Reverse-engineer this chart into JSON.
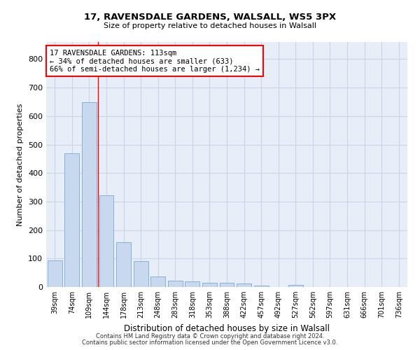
{
  "title1": "17, RAVENSDALE GARDENS, WALSALL, WS5 3PX",
  "title2": "Size of property relative to detached houses in Walsall",
  "xlabel": "Distribution of detached houses by size in Walsall",
  "ylabel": "Number of detached properties",
  "bar_labels": [
    "39sqm",
    "74sqm",
    "109sqm",
    "144sqm",
    "178sqm",
    "213sqm",
    "248sqm",
    "283sqm",
    "318sqm",
    "353sqm",
    "388sqm",
    "422sqm",
    "457sqm",
    "492sqm",
    "527sqm",
    "562sqm",
    "597sqm",
    "631sqm",
    "666sqm",
    "701sqm",
    "736sqm"
  ],
  "bar_values": [
    93,
    470,
    648,
    322,
    157,
    92,
    38,
    23,
    20,
    14,
    14,
    12,
    6,
    0,
    7,
    0,
    0,
    0,
    0,
    0,
    0
  ],
  "bar_color": "#c8d9ef",
  "bar_edge_color": "#7aa8d4",
  "grid_color": "#c8d4e8",
  "bg_color": "#e8eef8",
  "red_line_x": 2.5,
  "annotation_text": "17 RAVENSDALE GARDENS: 113sqm\n← 34% of detached houses are smaller (633)\n66% of semi-detached houses are larger (1,234) →",
  "annotation_box_color": "white",
  "annotation_box_edge": "red",
  "footer1": "Contains HM Land Registry data © Crown copyright and database right 2024.",
  "footer2": "Contains public sector information licensed under the Open Government Licence v3.0.",
  "ylim": [
    0,
    860
  ],
  "yticks": [
    0,
    100,
    200,
    300,
    400,
    500,
    600,
    700,
    800
  ]
}
